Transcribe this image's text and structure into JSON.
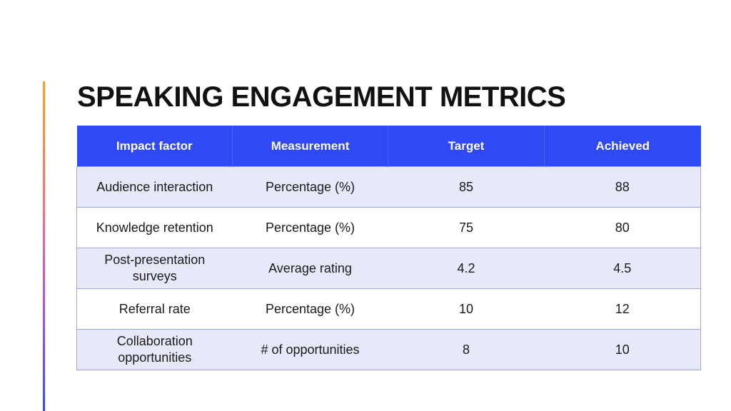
{
  "title": "SPEAKING ENGAGEMENT METRICS",
  "table": {
    "headers": [
      "Impact factor",
      "Measurement",
      "Target",
      "Achieved"
    ],
    "rows": [
      [
        "Audience interaction",
        "Percentage (%)",
        "85",
        "88"
      ],
      [
        "Knowledge retention",
        "Percentage (%)",
        "75",
        "80"
      ],
      [
        "Post-presentation surveys",
        "Average rating",
        "4.2",
        "4.5"
      ],
      [
        "Referral rate",
        "Percentage (%)",
        "10",
        "12"
      ],
      [
        "Collaboration opportunities",
        "# of opportunities",
        "8",
        "10"
      ]
    ]
  },
  "colors": {
    "header_background": "#2f49f5",
    "header_text": "#ffffff",
    "shaded_row": "#e7e9fb",
    "title_text": "#111111"
  }
}
